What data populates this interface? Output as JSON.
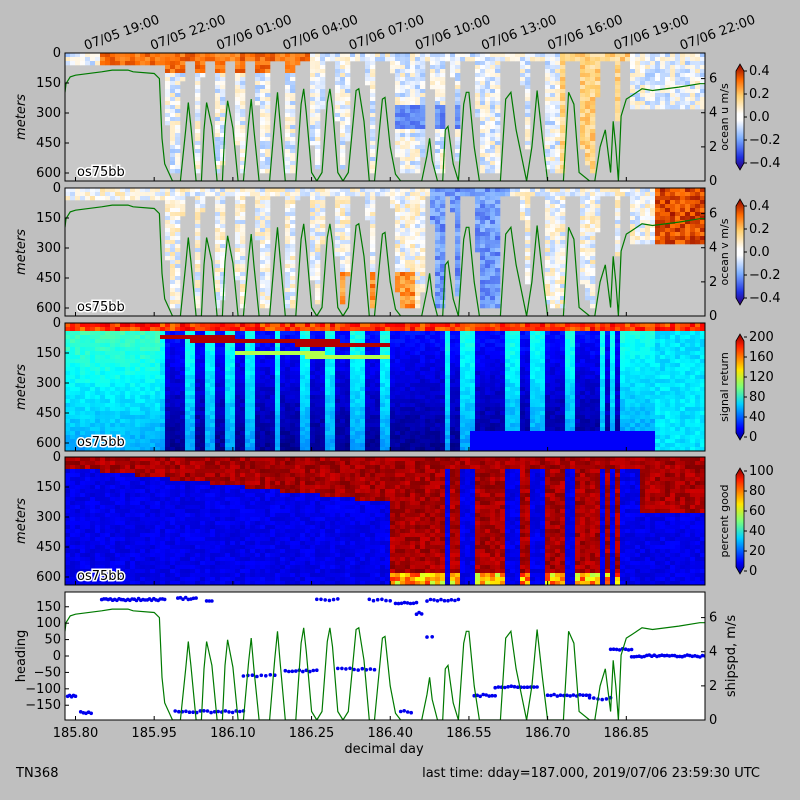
{
  "figure": {
    "footer_left": "TN368",
    "footer_right": "last time: dday=187.000,  2019/07/06 23:59:30 UTC",
    "top_time_labels": [
      "07/05 19:00",
      "07/05 22:00",
      "07/06 01:00",
      "07/06 04:00",
      "07/06 07:00",
      "07/06 10:00",
      "07/06 13:00",
      "07/06 16:00",
      "07/06 19:00",
      "07/06 22:00"
    ],
    "colors": {
      "background": "#bfbfbf",
      "ship_speed": "#007a00",
      "heading": "#0000ee",
      "nodata": "#c8c8c8"
    }
  },
  "chart_data": [
    {
      "type": "heatmap",
      "panel": "ocean_u",
      "instrument_label": "os75bb",
      "ylabel": "meters",
      "yticks": [
        0,
        150,
        300,
        450,
        600
      ],
      "ylim": [
        640,
        0
      ],
      "xlim": [
        185.78,
        187.0
      ],
      "colorbar": {
        "label": "ocean u m/s",
        "ticks": [
          "0.4",
          "0.2",
          "0.0",
          "−0.2",
          "−0.4"
        ],
        "range": [
          -0.45,
          0.4
        ],
        "cmap": "bwr"
      },
      "right_axis": {
        "label": "",
        "ticks": [
          "6",
          "4",
          "2",
          "0"
        ],
        "range": [
          0,
          7.5
        ]
      }
    },
    {
      "type": "heatmap",
      "panel": "ocean_v",
      "instrument_label": "os75bb",
      "ylabel": "meters",
      "yticks": [
        0,
        150,
        300,
        450,
        600
      ],
      "ylim": [
        640,
        0
      ],
      "xlim": [
        185.78,
        187.0
      ],
      "colorbar": {
        "label": "ocean v m/s",
        "ticks": [
          "0.4",
          "0.2",
          "0.0",
          "−0.2",
          "−0.4"
        ],
        "range": [
          -0.45,
          0.4
        ],
        "cmap": "bwr"
      },
      "right_axis": {
        "label": "",
        "ticks": [
          "6",
          "4",
          "2",
          "0"
        ],
        "range": [
          0,
          7.5
        ]
      }
    },
    {
      "type": "heatmap",
      "panel": "signal_return",
      "instrument_label": "os75bb",
      "ylabel": "meters",
      "yticks": [
        0,
        150,
        300,
        450,
        600
      ],
      "ylim": [
        640,
        0
      ],
      "xlim": [
        185.78,
        187.0
      ],
      "colorbar": {
        "label": "signal return",
        "ticks": [
          "200",
          "160",
          "120",
          "80",
          "40",
          "0"
        ],
        "range": [
          0,
          200
        ],
        "cmap": "jet"
      }
    },
    {
      "type": "heatmap",
      "panel": "percent_good",
      "instrument_label": "os75bb",
      "ylabel": "meters",
      "yticks": [
        0,
        150,
        300,
        450,
        600
      ],
      "ylim": [
        640,
        0
      ],
      "xlim": [
        185.78,
        187.0
      ],
      "colorbar": {
        "label": "percent good",
        "ticks": [
          "100",
          "80",
          "60",
          "40",
          "20",
          "0"
        ],
        "range": [
          0,
          100
        ],
        "cmap": "jet"
      }
    },
    {
      "type": "scatter",
      "panel": "heading_shipspd",
      "ylabel": "heading",
      "ylabel_right": "shipspd, m/s",
      "xlabel": "decimal day",
      "xticks": [
        "185.80",
        "185.95",
        "186.10",
        "186.25",
        "186.40",
        "186.55",
        "186.70",
        "186.85"
      ],
      "xtick_values": [
        185.8,
        185.95,
        186.1,
        186.25,
        186.4,
        186.55,
        186.7,
        186.85
      ],
      "yticks": [
        "150",
        "100",
        "50",
        "0",
        "−50",
        "−100",
        "−150"
      ],
      "ylim": [
        -195,
        195
      ],
      "yticks_right": [
        "6",
        "4",
        "2",
        "0"
      ],
      "ylim_right": [
        0,
        7.5
      ],
      "xlim": [
        185.78,
        187.0
      ],
      "grid": false
    }
  ],
  "ship_speed": {
    "x": [
      185.78,
      185.782,
      185.79,
      185.8,
      185.85,
      185.87,
      185.9,
      185.91,
      185.95,
      185.96,
      185.965,
      185.97,
      185.985,
      186.0,
      186.01,
      186.015,
      186.02,
      186.03,
      186.04,
      186.045,
      186.05,
      186.06,
      186.07,
      186.08,
      186.085,
      186.09,
      186.1,
      186.11,
      186.12,
      186.13,
      186.135,
      186.14,
      186.15,
      186.16,
      186.17,
      186.18,
      186.185,
      186.19,
      186.2,
      186.21,
      186.22,
      186.23,
      186.235,
      186.24,
      186.25,
      186.26,
      186.27,
      186.28,
      186.285,
      186.29,
      186.3,
      186.31,
      186.32,
      186.335,
      186.34,
      186.35,
      186.36,
      186.37,
      186.385,
      186.39,
      186.4,
      186.41,
      186.42,
      186.44,
      186.46,
      186.47,
      186.475,
      186.48,
      186.49,
      186.5,
      186.505,
      186.51,
      186.52,
      186.53,
      186.54,
      186.545,
      186.55,
      186.56,
      186.57,
      186.58,
      186.6,
      186.61,
      186.62,
      186.63,
      186.64,
      186.66,
      186.67,
      186.68,
      186.69,
      186.7,
      186.72,
      186.73,
      186.74,
      186.75,
      186.76,
      186.78,
      186.79,
      186.8,
      186.81,
      186.82,
      186.825,
      186.83,
      186.835,
      186.84,
      186.85,
      186.86,
      186.87,
      186.88,
      186.9,
      186.95,
      186.99,
      187.0
    ],
    "y": [
      5.2,
      5.7,
      6.1,
      6.2,
      6.4,
      6.5,
      6.5,
      6.4,
      6.3,
      6.0,
      2.5,
      1.0,
      0,
      0,
      3.0,
      4.6,
      3.2,
      0,
      0,
      3.0,
      4.6,
      3.2,
      0,
      0,
      3.2,
      4.7,
      3.1,
      0,
      0,
      3.4,
      4.8,
      3.0,
      0,
      0,
      0,
      3.6,
      5.2,
      3.4,
      0,
      0,
      0,
      4.5,
      5.4,
      4.0,
      0.5,
      0,
      0.5,
      4.6,
      5.4,
      4.3,
      0.5,
      0,
      0.5,
      5.3,
      5.4,
      3.5,
      0,
      0,
      4.8,
      4.9,
      2.0,
      0.4,
      0,
      0,
      0,
      1.5,
      2.5,
      1.2,
      0,
      0,
      3.0,
      3.2,
      1.0,
      0,
      4.5,
      5.2,
      5.2,
      2.0,
      0,
      0,
      0,
      0,
      4.8,
      5.2,
      3.0,
      0,
      2.0,
      5.3,
      2.5,
      0,
      0,
      0,
      5.2,
      4.5,
      0.5,
      0,
      0,
      2.0,
      3.0,
      0.5,
      3.5,
      2.0,
      0,
      3.8,
      4.8,
      5.0,
      5.2,
      5.4,
      5.3,
      5.5,
      5.7,
      5.7
    ]
  }
}
